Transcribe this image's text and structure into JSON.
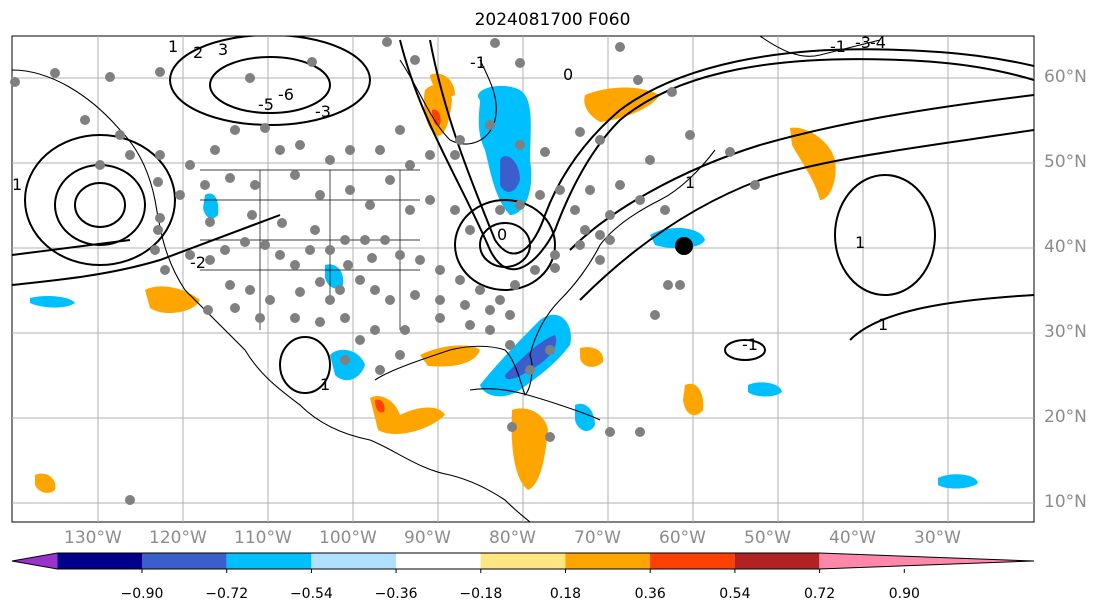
{
  "title": "2024081700 F060",
  "map": {
    "lon_range": [
      -140,
      -20
    ],
    "lat_range": [
      8,
      65
    ],
    "gridlines": true,
    "lon_labels": [
      "130°W",
      "120°W",
      "110°W",
      "100°W",
      "90°W",
      "80°W",
      "70°W",
      "60°W",
      "50°W",
      "40°W",
      "30°W"
    ],
    "lat_labels": [
      "60°N",
      "50°N",
      "40°N",
      "30°N",
      "20°N",
      "10°N"
    ],
    "contour_labels": [
      "1",
      "2",
      "3",
      "-6",
      "-5",
      "-3",
      "-1",
      "0",
      "1",
      "1",
      "-2",
      "1",
      "1",
      "-1",
      "1",
      "0",
      "-1",
      "-3",
      "-4"
    ],
    "marker": {
      "name": "storm-center",
      "color": "#000000"
    },
    "station_dot_color": "#808080"
  },
  "colorbar": {
    "colors": [
      "#9933cc",
      "#00008b",
      "#3a5fcd",
      "#00bfff",
      "#b0e0ff",
      "#ffffff",
      "#ffe680",
      "#ffa500",
      "#ff4000",
      "#b22222",
      "#ff88aa"
    ],
    "tick_labels": [
      "−0.90",
      "−0.72",
      "−0.54",
      "−0.36",
      "−0.18",
      "0.18",
      "0.36",
      "0.54",
      "0.72",
      "0.90"
    ]
  }
}
